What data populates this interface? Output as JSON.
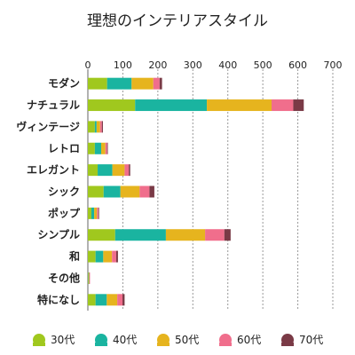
{
  "chart_data": {
    "type": "bar",
    "orientation": "horizontal",
    "stacked": true,
    "title": "理想のインテリアスタイル",
    "categories": [
      "モダン",
      "ナチュラル",
      "ヴィンテージ",
      "レトロ",
      "エレガント",
      "シック",
      "ポップ",
      "シンプル",
      "和",
      "その他",
      "特になし"
    ],
    "series": [
      {
        "name": "30代",
        "color": "#a0c81e",
        "values": [
          55,
          135,
          20,
          20,
          28,
          45,
          10,
          78,
          22,
          2,
          22
        ]
      },
      {
        "name": "40代",
        "color": "#1ab4a0",
        "values": [
          70,
          205,
          5,
          18,
          42,
          48,
          8,
          145,
          22,
          1,
          32
        ]
      },
      {
        "name": "50代",
        "color": "#e6b41e",
        "values": [
          62,
          185,
          10,
          12,
          35,
          55,
          8,
          112,
          25,
          1,
          30
        ]
      },
      {
        "name": "60代",
        "color": "#f06e8c",
        "values": [
          18,
          62,
          5,
          5,
          12,
          28,
          4,
          55,
          12,
          1,
          15
        ]
      },
      {
        "name": "70代",
        "color": "#7a3a46",
        "values": [
          7,
          30,
          3,
          2,
          4,
          14,
          2,
          18,
          5,
          0,
          6
        ]
      }
    ],
    "xlim": [
      0,
      700
    ],
    "xticks": [
      0,
      100,
      200,
      300,
      400,
      500,
      600,
      700
    ],
    "grid": true,
    "legend_position": "bottom"
  }
}
